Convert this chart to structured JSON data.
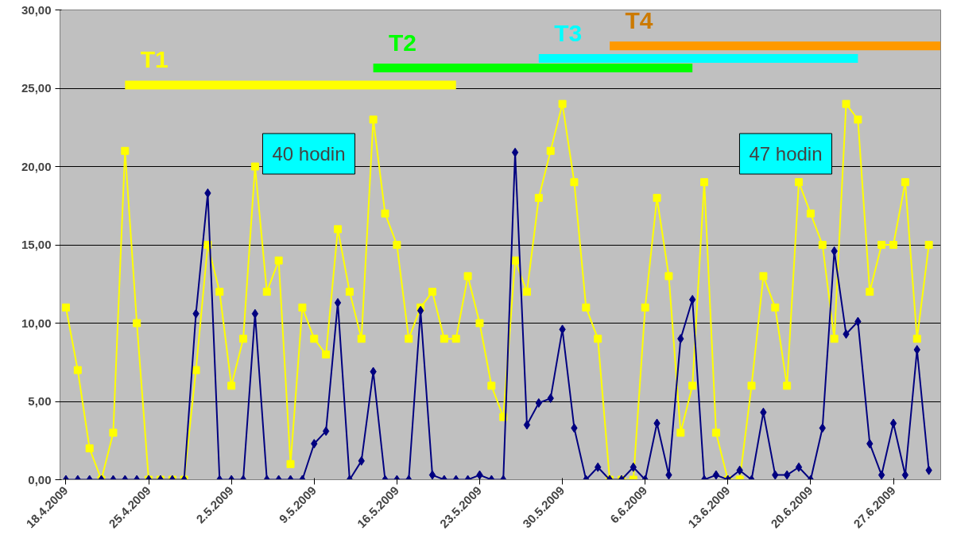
{
  "chart_data": {
    "type": "line",
    "x": [
      "2009-04-18",
      "2009-04-19",
      "2009-04-20",
      "2009-04-21",
      "2009-04-22",
      "2009-04-23",
      "2009-04-24",
      "2009-04-25",
      "2009-04-26",
      "2009-04-27",
      "2009-04-28",
      "2009-04-29",
      "2009-04-30",
      "2009-05-01",
      "2009-05-02",
      "2009-05-03",
      "2009-05-04",
      "2009-05-05",
      "2009-05-06",
      "2009-05-07",
      "2009-05-08",
      "2009-05-09",
      "2009-05-10",
      "2009-05-11",
      "2009-05-12",
      "2009-05-13",
      "2009-05-14",
      "2009-05-15",
      "2009-05-16",
      "2009-05-17",
      "2009-05-18",
      "2009-05-19",
      "2009-05-20",
      "2009-05-21",
      "2009-05-22",
      "2009-05-23",
      "2009-05-24",
      "2009-05-25",
      "2009-05-26",
      "2009-05-27",
      "2009-05-28",
      "2009-05-29",
      "2009-05-30",
      "2009-05-31",
      "2009-06-01",
      "2009-06-02",
      "2009-06-03",
      "2009-06-04",
      "2009-06-05",
      "2009-06-06",
      "2009-06-07",
      "2009-06-08",
      "2009-06-09",
      "2009-06-10",
      "2009-06-11",
      "2009-06-12",
      "2009-06-13",
      "2009-06-14",
      "2009-06-15",
      "2009-06-16",
      "2009-06-17",
      "2009-06-18",
      "2009-06-19",
      "2009-06-20",
      "2009-06-21",
      "2009-06-22",
      "2009-06-23",
      "2009-06-24",
      "2009-06-25",
      "2009-06-26",
      "2009-06-27",
      "2009-06-28",
      "2009-06-29",
      "2009-06-30"
    ],
    "series": [
      {
        "color": "#ffff00",
        "marker": "square",
        "values": [
          11,
          7,
          2,
          0,
          3,
          21,
          10,
          0,
          0,
          0,
          0,
          7,
          15,
          12,
          6,
          9,
          20,
          12,
          14,
          1,
          11,
          9,
          8,
          16,
          12,
          9,
          23,
          17,
          15,
          9,
          11,
          12,
          9,
          9,
          13,
          10,
          6,
          4,
          14,
          12,
          18,
          21,
          24,
          19,
          11,
          9,
          0,
          0,
          0,
          11,
          18,
          13,
          3,
          6,
          19,
          3,
          0,
          0,
          6,
          13,
          11,
          6,
          19,
          17,
          15,
          9,
          24,
          23,
          12,
          15,
          15,
          19,
          9,
          15
        ]
      },
      {
        "color": "#000080",
        "marker": "diamond",
        "values": [
          0,
          0,
          0,
          0,
          0,
          0,
          0,
          0,
          0,
          0,
          0,
          10.6,
          18.3,
          0,
          0,
          0,
          10.6,
          0,
          0,
          0,
          0,
          2.3,
          3.1,
          11.3,
          0,
          1.2,
          6.9,
          0,
          0,
          0,
          10.8,
          0.3,
          0,
          0,
          0,
          0.3,
          0,
          0,
          20.9,
          3.5,
          4.9,
          5.2,
          9.6,
          3.3,
          0,
          0.8,
          0,
          0,
          0.8,
          0,
          3.6,
          0.3,
          9.0,
          11.5,
          0,
          0.3,
          0,
          0.6,
          0,
          4.3,
          0.3,
          0.3,
          0.8,
          0,
          3.3,
          14.6,
          9.3,
          10.1,
          2.3,
          0.3,
          3.6,
          0.3,
          8.3,
          0.6
        ]
      },
      {
        "color": "#ffff00",
        "marker": "none",
        "x": [
          "2009-04-23",
          "2009-05-21"
        ],
        "values": [
          25.2,
          25.2
        ]
      },
      {
        "color": "#00ff00",
        "marker": "none",
        "x": [
          "2009-05-14",
          "2009-06-10"
        ],
        "values": [
          26.3,
          26.3
        ]
      },
      {
        "color": "#00ffff",
        "marker": "none",
        "x": [
          "2009-05-28",
          "2009-06-24"
        ],
        "values": [
          26.9,
          26.9
        ]
      },
      {
        "color": "#ff9900",
        "marker": "none",
        "x": [
          "2009-06-03",
          "2009-07-01"
        ],
        "values": [
          27.7,
          27.7
        ]
      }
    ],
    "annotations": [
      "T1",
      "T2",
      "T3",
      "T4",
      "40 hodin",
      "47 hodin"
    ],
    "xlim": [
      "2009-04-17T12:00",
      "2009-07-01"
    ],
    "xticks": [
      {
        "value": "2009-04-18",
        "label": "18.4.2009"
      },
      {
        "value": "2009-04-25",
        "label": "25.4.2009"
      },
      {
        "value": "2009-05-02",
        "label": "2.5.2009"
      },
      {
        "value": "2009-05-09",
        "label": "9.5.2009"
      },
      {
        "value": "2009-05-16",
        "label": "16.5.2009"
      },
      {
        "value": "2009-05-23",
        "label": "23.5.2009"
      },
      {
        "value": "2009-05-30",
        "label": "30.5.2009"
      },
      {
        "value": "2009-06-06",
        "label": "6.6.2009"
      },
      {
        "value": "2009-06-13",
        "label": "13.6.2009"
      },
      {
        "value": "2009-06-20",
        "label": "20.6.2009"
      },
      {
        "value": "2009-06-27",
        "label": "27.6.2009"
      }
    ],
    "ylim": [
      0,
      30
    ],
    "yticks": [
      {
        "value": 0,
        "label": "0,00"
      },
      {
        "value": 5,
        "label": "5,00"
      },
      {
        "value": 10,
        "label": "10,00"
      },
      {
        "value": 15,
        "label": "15,00"
      },
      {
        "value": 20,
        "label": "20,00"
      },
      {
        "value": 25,
        "label": "25,00"
      },
      {
        "value": 30,
        "label": "30,00"
      }
    ],
    "grid": "y",
    "legend": false
  }
}
